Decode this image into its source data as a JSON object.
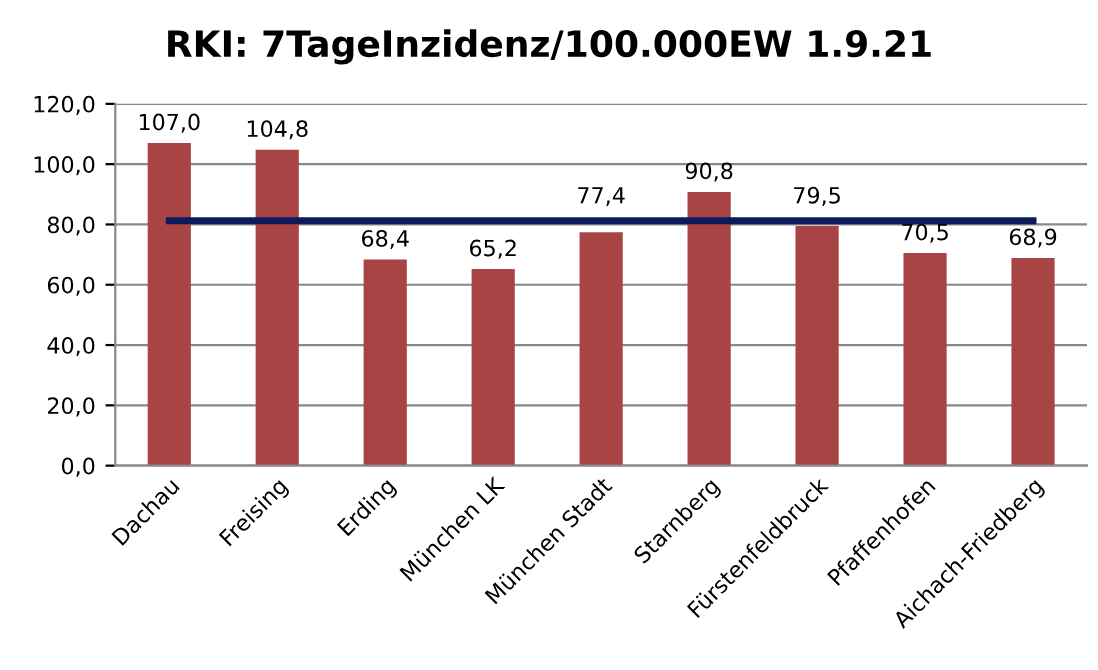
{
  "chart_data": {
    "type": "bar",
    "title": "RKI: 7TageInzidenz/100.000EW 1.9.21",
    "categories": [
      "Dachau",
      "Freising",
      "Erding",
      "München LK",
      "München Stadt",
      "Starnberg",
      "Fürstenfeldbruck",
      "Pfaffenhofen",
      "Aichach-Friedberg"
    ],
    "series": [
      {
        "color": "#a84443",
        "values": [
          107.0,
          104.8,
          68.4,
          65.2,
          77.4,
          90.8,
          79.5,
          70.5,
          68.9
        ],
        "value_labels": [
          "107,0",
          "104,8",
          "68,4",
          "65,2",
          "77,4",
          "90,8",
          "79,5",
          "70,5",
          "68,9"
        ]
      },
      {
        "type": "line",
        "color": "#0d1a5c",
        "values": [
          81.2,
          81.2,
          81.2,
          81.2,
          81.2,
          81.2,
          81.2,
          81.2,
          81.2
        ]
      }
    ],
    "ylim": [
      0,
      120
    ],
    "yticks": [
      {
        "value": 0,
        "label": "0,0"
      },
      {
        "value": 20,
        "label": "20,0"
      },
      {
        "value": 40,
        "label": "40,0"
      },
      {
        "value": 60,
        "label": "60,0"
      },
      {
        "value": 80,
        "label": "80,0"
      },
      {
        "value": 100,
        "label": "100,0"
      },
      {
        "value": 120,
        "label": "120,0"
      }
    ],
    "grid": "y",
    "legend": false,
    "marker": "none",
    "line_style": "solid"
  }
}
